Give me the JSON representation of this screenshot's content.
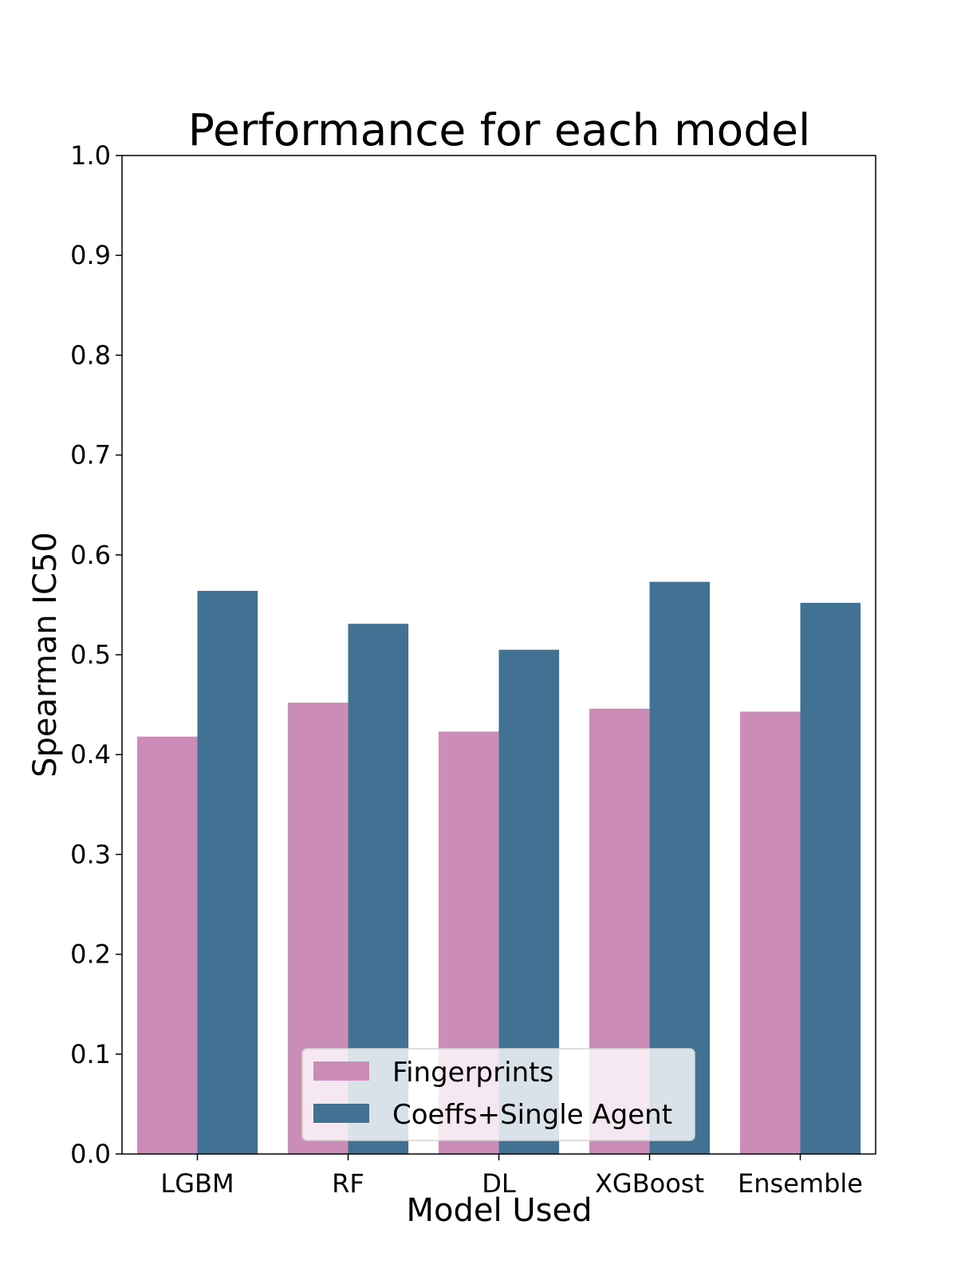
{
  "chart_data": {
    "type": "bar",
    "title": "Performance for each model",
    "xlabel": "Model Used",
    "ylabel": "Spearman IC50",
    "categories": [
      "LGBM",
      "RF",
      "DL",
      "XGBoost",
      "Ensemble"
    ],
    "series": [
      {
        "name": "Fingerprints",
        "color": "#cc8cb8",
        "values": [
          0.418,
          0.452,
          0.423,
          0.446,
          0.443
        ]
      },
      {
        "name": "Coeffs+Single Agent",
        "color": "#417193",
        "values": [
          0.564,
          0.531,
          0.505,
          0.573,
          0.552
        ]
      }
    ],
    "ylim": [
      0.0,
      1.0
    ],
    "yticks": [
      "0.0",
      "0.1",
      "0.2",
      "0.3",
      "0.4",
      "0.5",
      "0.6",
      "0.7",
      "0.8",
      "0.9",
      "1.0"
    ],
    "grid": false,
    "legend_position": "bottom-center"
  }
}
